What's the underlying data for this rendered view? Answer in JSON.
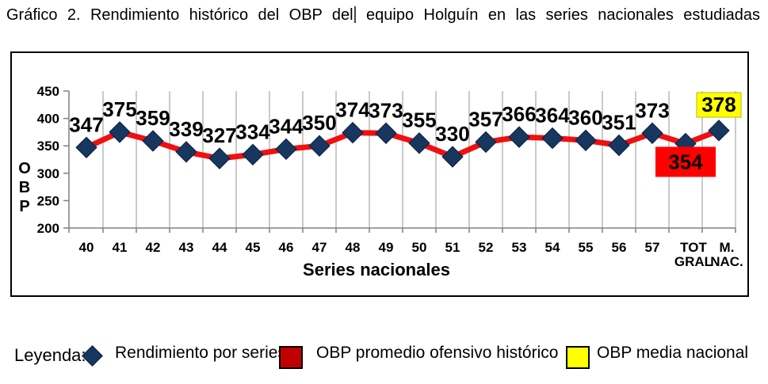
{
  "title": {
    "part1": "Gráfico 2. Rendimiento histórico del OBP del",
    "part2": "equipo Holguín en las series nacionales estudiadas"
  },
  "chart_data": {
    "type": "line",
    "categories": [
      "40",
      "41",
      "42",
      "43",
      "44",
      "45",
      "46",
      "47",
      "48",
      "49",
      "50",
      "51",
      "52",
      "53",
      "54",
      "55",
      "56",
      "57",
      "TOT GRAL",
      "M. NAC."
    ],
    "series": [
      {
        "name": "Rendimiento por series",
        "values": [
          347,
          375,
          359,
          339,
          327,
          334,
          344,
          350,
          374,
          373,
          355,
          330,
          357,
          366,
          364,
          360,
          351,
          373,
          354,
          378
        ]
      }
    ],
    "title": "Gráfico 2. Rendimiento histórico del OBP del equipo Holguín en las series nacionales estudiadas",
    "xlabel": "Series nacionales",
    "ylabel": "OBP",
    "ylim": [
      200,
      450
    ],
    "yticks": [
      200,
      250,
      300,
      350,
      400,
      450
    ],
    "grid": "vertical-only",
    "legend_position": "below-chart",
    "highlight_boxes": [
      {
        "index": 18,
        "label": "354",
        "meaning": "OBP promedio ofensivo histórico",
        "color": "#FF0000",
        "position": "below"
      },
      {
        "index": 19,
        "label": "378",
        "meaning": "OBP media nacional",
        "color": "#FFFF00",
        "position": "above"
      }
    ],
    "colors": {
      "line": "#EE1111",
      "marker": "#17375E",
      "gridline": "#A6A6A6",
      "axis": "#808080",
      "label_text": "#000000"
    }
  },
  "legend": {
    "label": "Leyenda:",
    "items": [
      {
        "swatch": "diamond-icon",
        "color": "#17375E",
        "label": "Rendimiento por series"
      },
      {
        "swatch": "square-icon",
        "color": "#C00000",
        "label": "OBP promedio ofensivo histórico"
      },
      {
        "swatch": "square-icon",
        "color": "#FFFF00",
        "label": "OBP media nacional"
      }
    ]
  }
}
